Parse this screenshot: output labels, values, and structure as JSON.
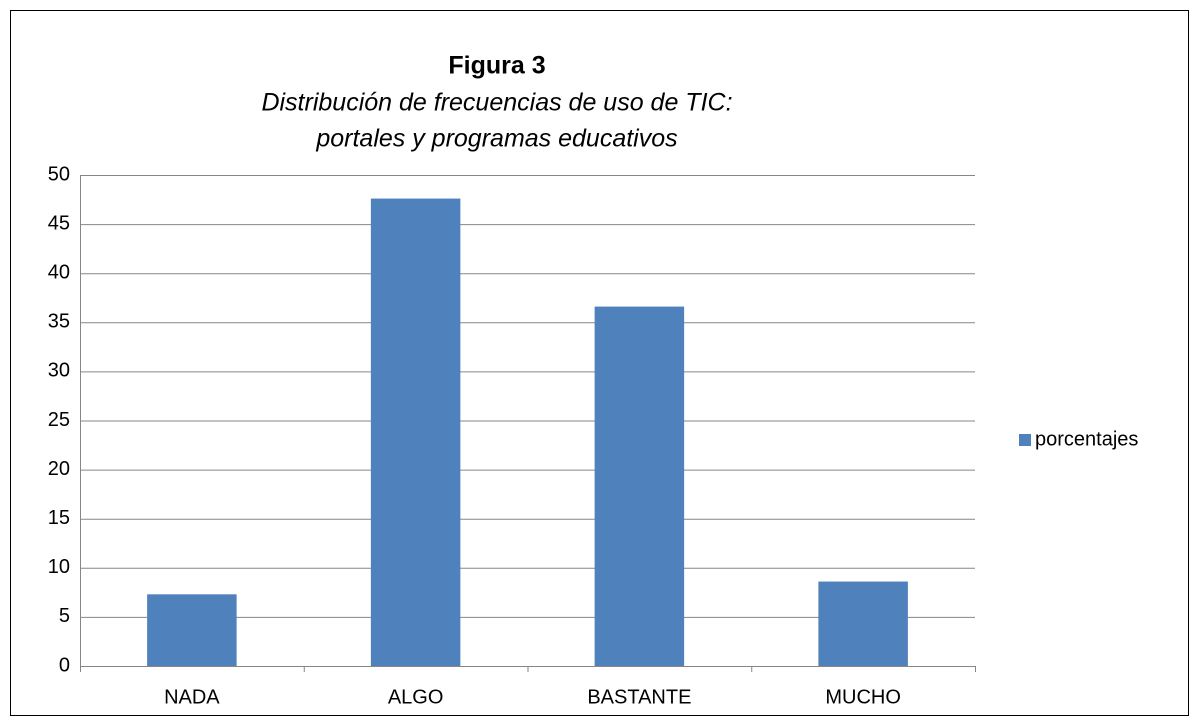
{
  "chart_data": {
    "type": "bar",
    "title": "Figura 3",
    "subtitle": [
      "Distribución de frecuencias de uso de TIC:",
      "portales y programas educativos"
    ],
    "categories": [
      "NADA",
      "ALGO",
      "BASTANTE",
      "MUCHO"
    ],
    "series": [
      {
        "name": "porcentajes",
        "color": "#4f81bd",
        "values": [
          7.3,
          47.6,
          36.6,
          8.6
        ]
      }
    ],
    "ylim": [
      0,
      50
    ],
    "yticks": [
      0,
      5,
      10,
      15,
      20,
      25,
      30,
      35,
      40,
      45,
      50
    ],
    "grid": true,
    "legend": "right"
  }
}
